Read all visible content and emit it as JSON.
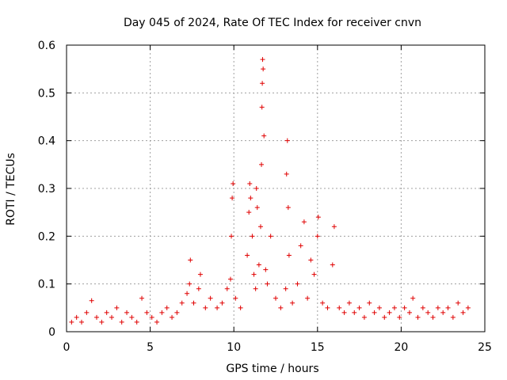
{
  "chart_data": {
    "type": "scatter",
    "title": "Day 045 of 2024, Rate Of TEC Index for receiver cnvn",
    "xlabel": "GPS time / hours",
    "ylabel": "ROTI / TECUs",
    "xlim": [
      0,
      25
    ],
    "ylim": [
      0,
      0.6
    ],
    "x_ticks": [
      0,
      5,
      10,
      15,
      20,
      25
    ],
    "x_tick_labels": [
      "0",
      "5",
      "10",
      "15",
      "20",
      "25"
    ],
    "y_ticks": [
      0,
      0.1,
      0.2,
      0.3,
      0.4,
      0.5,
      0.6
    ],
    "y_tick_labels": [
      "0",
      "0.1",
      "0.2",
      "0.3",
      "0.4",
      "0.5",
      "0.6"
    ],
    "grid": true,
    "marker": "+",
    "color": "#e00000",
    "series": [
      {
        "points": [
          [
            0.3,
            0.02
          ],
          [
            0.6,
            0.03
          ],
          [
            0.9,
            0.02
          ],
          [
            1.2,
            0.04
          ],
          [
            1.5,
            0.065
          ],
          [
            1.8,
            0.03
          ],
          [
            2.1,
            0.02
          ],
          [
            2.4,
            0.04
          ],
          [
            2.7,
            0.03
          ],
          [
            3.0,
            0.05
          ],
          [
            3.3,
            0.02
          ],
          [
            3.6,
            0.04
          ],
          [
            3.9,
            0.03
          ],
          [
            4.2,
            0.02
          ],
          [
            4.5,
            0.07
          ],
          [
            4.8,
            0.04
          ],
          [
            5.1,
            0.03
          ],
          [
            5.4,
            0.02
          ],
          [
            5.7,
            0.04
          ],
          [
            6.0,
            0.05
          ],
          [
            6.3,
            0.03
          ],
          [
            6.6,
            0.04
          ],
          [
            6.9,
            0.06
          ],
          [
            7.2,
            0.08
          ],
          [
            7.35,
            0.1
          ],
          [
            7.4,
            0.15
          ],
          [
            7.6,
            0.06
          ],
          [
            7.9,
            0.09
          ],
          [
            8.0,
            0.12
          ],
          [
            8.3,
            0.05
          ],
          [
            8.6,
            0.07
          ],
          [
            9.0,
            0.05
          ],
          [
            9.3,
            0.06
          ],
          [
            9.6,
            0.09
          ],
          [
            9.8,
            0.11
          ],
          [
            9.85,
            0.2
          ],
          [
            9.9,
            0.28
          ],
          [
            9.95,
            0.31
          ],
          [
            10.1,
            0.07
          ],
          [
            10.4,
            0.05
          ],
          [
            10.8,
            0.16
          ],
          [
            10.9,
            0.25
          ],
          [
            10.95,
            0.31
          ],
          [
            11.0,
            0.28
          ],
          [
            11.1,
            0.2
          ],
          [
            11.2,
            0.12
          ],
          [
            11.3,
            0.09
          ],
          [
            11.35,
            0.3
          ],
          [
            11.4,
            0.26
          ],
          [
            11.5,
            0.14
          ],
          [
            11.6,
            0.22
          ],
          [
            11.65,
            0.35
          ],
          [
            11.68,
            0.47
          ],
          [
            11.7,
            0.52
          ],
          [
            11.72,
            0.57
          ],
          [
            11.75,
            0.55
          ],
          [
            11.8,
            0.41
          ],
          [
            11.9,
            0.13
          ],
          [
            12.0,
            0.1
          ],
          [
            12.2,
            0.2
          ],
          [
            12.5,
            0.07
          ],
          [
            12.8,
            0.05
          ],
          [
            13.1,
            0.09
          ],
          [
            13.15,
            0.33
          ],
          [
            13.2,
            0.4
          ],
          [
            13.25,
            0.26
          ],
          [
            13.3,
            0.16
          ],
          [
            13.5,
            0.06
          ],
          [
            13.8,
            0.1
          ],
          [
            14.0,
            0.18
          ],
          [
            14.2,
            0.23
          ],
          [
            14.4,
            0.07
          ],
          [
            14.6,
            0.15
          ],
          [
            14.8,
            0.12
          ],
          [
            15.0,
            0.2
          ],
          [
            15.05,
            0.24
          ],
          [
            15.3,
            0.06
          ],
          [
            15.6,
            0.05
          ],
          [
            15.9,
            0.14
          ],
          [
            16.0,
            0.22
          ],
          [
            16.3,
            0.05
          ],
          [
            16.6,
            0.04
          ],
          [
            16.9,
            0.06
          ],
          [
            17.2,
            0.04
          ],
          [
            17.5,
            0.05
          ],
          [
            17.8,
            0.03
          ],
          [
            18.1,
            0.06
          ],
          [
            18.4,
            0.04
          ],
          [
            18.7,
            0.05
          ],
          [
            19.0,
            0.03
          ],
          [
            19.3,
            0.04
          ],
          [
            19.6,
            0.05
          ],
          [
            19.9,
            0.03
          ],
          [
            20.2,
            0.05
          ],
          [
            20.5,
            0.04
          ],
          [
            20.7,
            0.07
          ],
          [
            21.0,
            0.03
          ],
          [
            21.3,
            0.05
          ],
          [
            21.6,
            0.04
          ],
          [
            21.9,
            0.03
          ],
          [
            22.2,
            0.05
          ],
          [
            22.5,
            0.04
          ],
          [
            22.8,
            0.05
          ],
          [
            23.1,
            0.03
          ],
          [
            23.4,
            0.06
          ],
          [
            23.7,
            0.04
          ],
          [
            24.0,
            0.05
          ]
        ]
      }
    ]
  }
}
